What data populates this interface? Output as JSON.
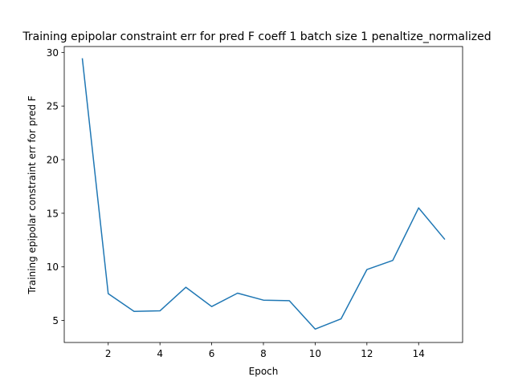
{
  "chart_data": {
    "type": "line",
    "title": "Training epipolar constraint err for pred F coeff 1 batch size 1 penaltize_normalized",
    "xlabel": "Epoch",
    "ylabel": "Training epipolar constraint err for pred F",
    "xlim": [
      0.3,
      15.7
    ],
    "ylim": [
      2.95,
      30.55
    ],
    "xticks": [
      2,
      4,
      6,
      8,
      10,
      12,
      14
    ],
    "yticks": [
      5,
      10,
      15,
      20,
      25,
      30
    ],
    "grid": false,
    "series": [
      {
        "color": "#1f77b4",
        "x": [
          1,
          2,
          3,
          4,
          5,
          6,
          7,
          8,
          9,
          10,
          11,
          12,
          13,
          14,
          15
        ],
        "y": [
          29.4,
          7.5,
          5.85,
          5.9,
          8.1,
          6.3,
          7.55,
          6.9,
          6.85,
          4.2,
          5.15,
          9.75,
          10.6,
          15.5,
          12.6
        ]
      }
    ]
  }
}
